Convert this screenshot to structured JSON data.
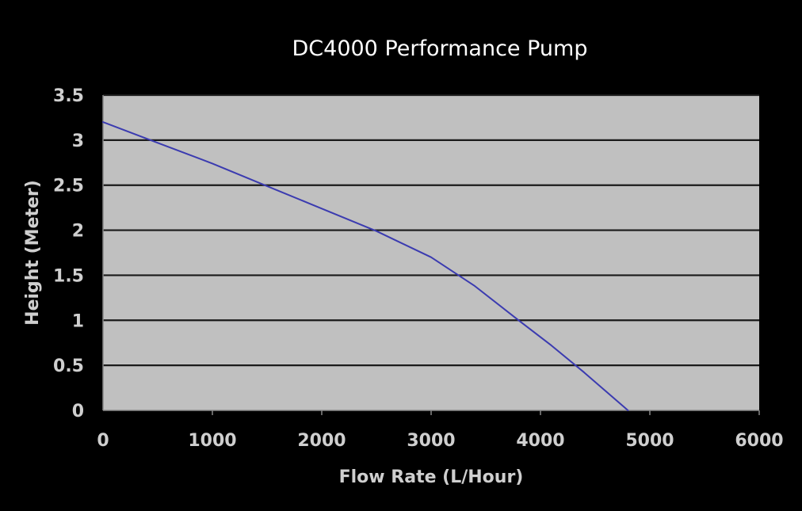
{
  "colors": {
    "background": "#000000",
    "plot_background": "#c0c0c0",
    "gridline": "#1a1a1a",
    "series_line": "#3b3bb0",
    "text_title": "#ffffff",
    "text_axis": "#cfcfcf"
  },
  "chart_data": {
    "type": "line",
    "title": "DC4000 Performance Pump",
    "xlabel": "Flow Rate (L/Hour)",
    "ylabel": "Height (Meter)",
    "xlim": [
      0,
      6000
    ],
    "ylim": [
      0,
      3.5
    ],
    "x_ticks": [
      "0",
      "1000",
      "2000",
      "3000",
      "4000",
      "5000",
      "6000"
    ],
    "y_ticks": [
      "0",
      "0.5",
      "1",
      "1.5",
      "2",
      "2.5",
      "3",
      "3.5"
    ],
    "grid": "horizontal",
    "legend": "none",
    "series": [
      {
        "x": [
          0,
          500,
          1000,
          1500,
          2000,
          2500,
          3000,
          3400,
          3800,
          4100,
          4400,
          4800
        ],
        "y": [
          3.2,
          2.97,
          2.74,
          2.49,
          2.24,
          1.99,
          1.7,
          1.38,
          1.0,
          0.72,
          0.42,
          0.0
        ]
      }
    ]
  }
}
